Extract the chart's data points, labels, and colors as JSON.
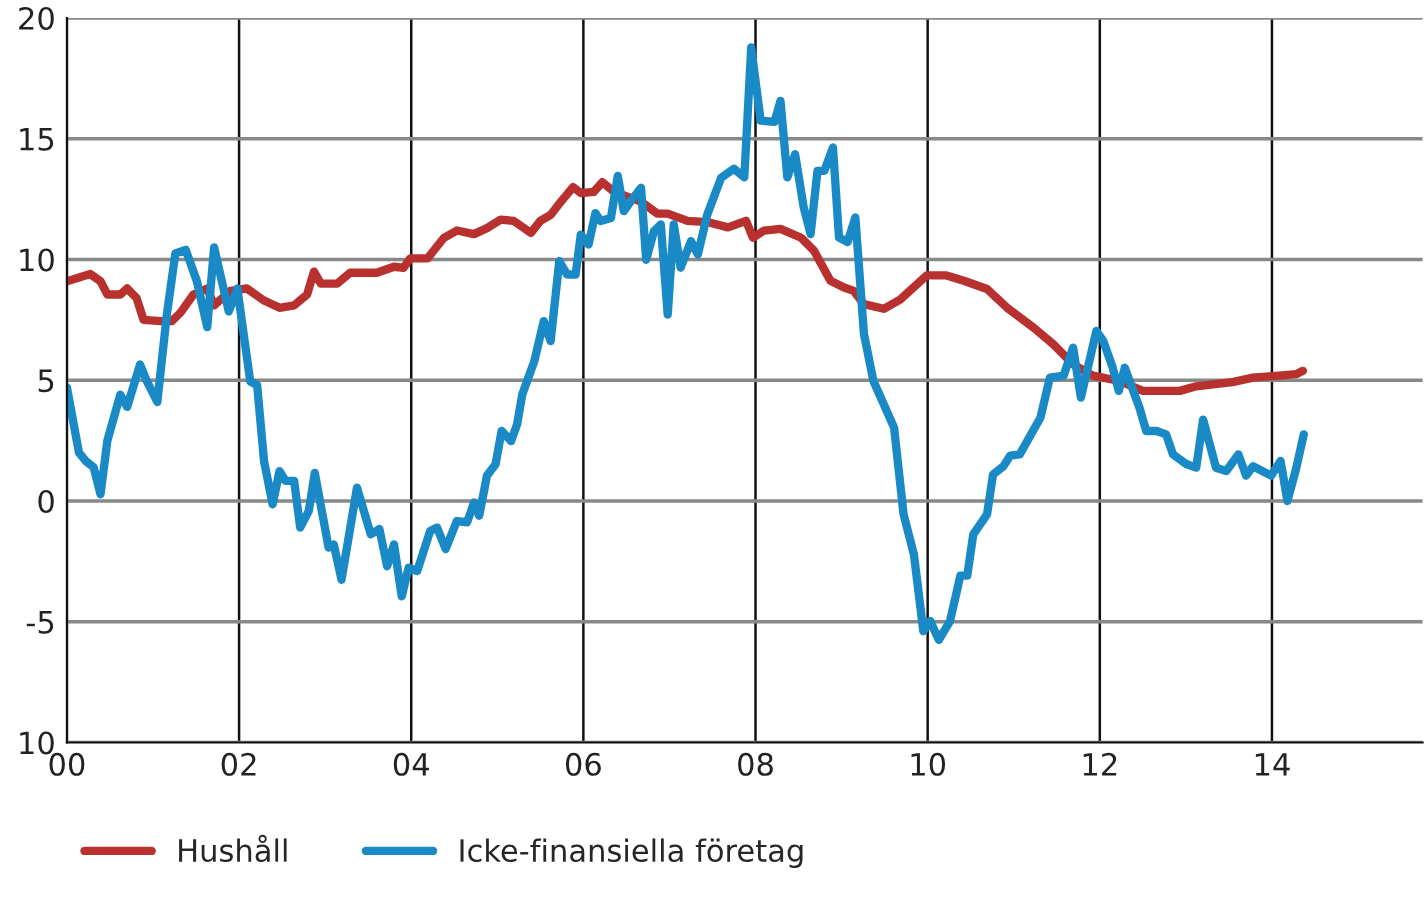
{
  "chart_data": {
    "type": "line",
    "xlim": [
      0,
      15.75
    ],
    "xticks": [
      {
        "value": 0,
        "label": "00"
      },
      {
        "value": 2,
        "label": "02"
      },
      {
        "value": 4,
        "label": "04"
      },
      {
        "value": 6,
        "label": "06"
      },
      {
        "value": 8,
        "label": "08"
      },
      {
        "value": 10,
        "label": "10"
      },
      {
        "value": 12,
        "label": "12"
      },
      {
        "value": 14,
        "label": "14"
      }
    ],
    "ylim": [
      -10,
      20
    ],
    "yticks": [
      {
        "value": -10,
        "label": "10"
      },
      {
        "value": -5,
        "label": "-5"
      },
      0,
      5,
      10,
      15,
      20
    ],
    "grid": true,
    "legend": "bottom left",
    "line_style": "solid",
    "series": [
      {
        "name": "Hushåll",
        "color": "#b8312f",
        "x": [
          0,
          0.27,
          0.39,
          0.47,
          0.62,
          0.7,
          0.81,
          0.89,
          1.09,
          1.22,
          1.32,
          1.47,
          1.63,
          1.71,
          1.9,
          2.09,
          2.29,
          2.47,
          2.64,
          2.79,
          2.87,
          2.95,
          3.14,
          3.29,
          3.6,
          3.8,
          3.91,
          3.99,
          4.19,
          4.38,
          4.53,
          4.73,
          4.88,
          5.04,
          5.19,
          5.39,
          5.5,
          5.62,
          5.74,
          5.88,
          5.97,
          6.12,
          6.22,
          6.36,
          6.51,
          6.67,
          6.86,
          6.98,
          7.21,
          7.44,
          7.68,
          7.89,
          7.97,
          8.1,
          8.29,
          8.53,
          8.68,
          8.87,
          9.03,
          9.14,
          9.26,
          9.49,
          9.68,
          9.99,
          10.22,
          10.42,
          10.69,
          10.92,
          11.23,
          11.46,
          11.69,
          11.92,
          12.23,
          12.5,
          12.93,
          13.12,
          13.54,
          13.78,
          14.08,
          14.28,
          14.36
        ],
        "values": [
          9.1,
          9.4,
          9.1,
          8.55,
          8.55,
          8.8,
          8.4,
          7.5,
          7.45,
          7.45,
          7.8,
          8.55,
          8.8,
          8.1,
          8.7,
          8.8,
          8.3,
          8.0,
          8.1,
          8.55,
          9.5,
          9.0,
          9.0,
          9.45,
          9.45,
          9.7,
          9.65,
          10.05,
          10.05,
          10.9,
          11.2,
          11.05,
          11.3,
          11.65,
          11.6,
          11.1,
          11.6,
          11.85,
          12.4,
          13.0,
          12.75,
          12.8,
          13.2,
          12.8,
          12.6,
          12.4,
          11.9,
          11.9,
          11.6,
          11.55,
          11.33,
          11.6,
          10.9,
          11.2,
          11.27,
          10.9,
          10.36,
          9.12,
          8.84,
          8.7,
          8.15,
          7.96,
          8.34,
          9.34,
          9.34,
          9.12,
          8.78,
          8.01,
          7.18,
          6.49,
          5.66,
          5.19,
          4.97,
          4.56,
          4.56,
          4.75,
          4.92,
          5.11,
          5.19,
          5.25,
          5.39
        ]
      },
      {
        "name": "Icke-finansiella företag",
        "color": "#1a8ac6",
        "x": [
          0,
          0.14,
          0.22,
          0.31,
          0.39,
          0.47,
          0.62,
          0.7,
          0.85,
          0.93,
          1.05,
          1.16,
          1.26,
          1.38,
          1.51,
          1.63,
          1.71,
          1.88,
          1.98,
          2.13,
          2.21,
          2.29,
          2.39,
          2.47,
          2.54,
          2.64,
          2.71,
          2.81,
          2.88,
          3.04,
          3.1,
          3.19,
          3.37,
          3.53,
          3.63,
          3.72,
          3.8,
          3.89,
          3.97,
          4.07,
          4.22,
          4.3,
          4.4,
          4.53,
          4.65,
          4.73,
          4.79,
          4.88,
          4.98,
          5.05,
          5.16,
          5.23,
          5.29,
          5.43,
          5.54,
          5.62,
          5.72,
          5.81,
          5.91,
          5.97,
          6.06,
          6.14,
          6.2,
          6.32,
          6.4,
          6.47,
          6.55,
          6.67,
          6.73,
          6.82,
          6.9,
          6.98,
          7.05,
          7.13,
          7.25,
          7.33,
          7.44,
          7.6,
          7.75,
          7.87,
          7.95,
          8.06,
          8.22,
          8.29,
          8.37,
          8.46,
          8.56,
          8.64,
          8.72,
          8.8,
          8.9,
          8.97,
          9.07,
          9.16,
          9.26,
          9.37,
          9.61,
          9.72,
          9.84,
          9.95,
          10.03,
          10.13,
          10.26,
          10.38,
          10.46,
          10.53,
          10.69,
          10.76,
          10.88,
          10.96,
          11.07,
          11.31,
          11.42,
          11.58,
          11.69,
          11.78,
          11.96,
          12.04,
          12.15,
          12.22,
          12.29,
          12.46,
          12.54,
          12.66,
          12.77,
          12.85,
          13.01,
          13.12,
          13.2,
          13.35,
          13.47,
          13.61,
          13.7,
          13.78,
          13.99,
          14.1,
          14.18,
          14.28,
          14.37
        ],
        "values": [
          4.7,
          2.0,
          1.65,
          1.4,
          0.28,
          2.5,
          4.4,
          3.9,
          5.65,
          4.95,
          4.1,
          7.7,
          10.25,
          10.4,
          9.1,
          7.2,
          10.5,
          7.85,
          8.8,
          4.95,
          4.8,
          1.65,
          -0.14,
          1.24,
          0.83,
          0.83,
          -1.1,
          -0.41,
          1.16,
          -1.93,
          -1.8,
          -3.26,
          0.55,
          -1.38,
          -1.16,
          -2.7,
          -1.8,
          -3.95,
          -2.76,
          -2.9,
          -1.24,
          -1.1,
          -1.99,
          -0.83,
          -0.88,
          -0.06,
          -0.61,
          1.05,
          1.52,
          2.9,
          2.48,
          3.17,
          4.41,
          5.79,
          7.45,
          6.62,
          9.93,
          9.38,
          9.38,
          11.03,
          10.62,
          11.92,
          11.59,
          11.72,
          13.46,
          12.0,
          12.41,
          12.97,
          9.99,
          11.17,
          11.45,
          7.72,
          11.45,
          9.66,
          10.76,
          10.21,
          11.86,
          13.38,
          13.76,
          13.4,
          18.78,
          15.75,
          15.7,
          16.57,
          13.4,
          14.36,
          12.15,
          11.05,
          13.67,
          13.67,
          14.64,
          10.91,
          10.72,
          11.74,
          6.91,
          4.97,
          3.04,
          -0.55,
          -2.21,
          -5.39,
          -4.97,
          -5.75,
          -4.97,
          -3.09,
          -3.09,
          -1.38,
          -0.55,
          1.1,
          1.44,
          1.88,
          1.93,
          3.45,
          5.11,
          5.19,
          6.35,
          4.28,
          7.04,
          6.63,
          5.52,
          4.56,
          5.52,
          3.87,
          2.9,
          2.9,
          2.76,
          1.93,
          1.52,
          1.38,
          3.37,
          1.38,
          1.24,
          1.93,
          1.05,
          1.44,
          1.05,
          1.66,
          0,
          1.33,
          2.76
        ]
      }
    ]
  }
}
